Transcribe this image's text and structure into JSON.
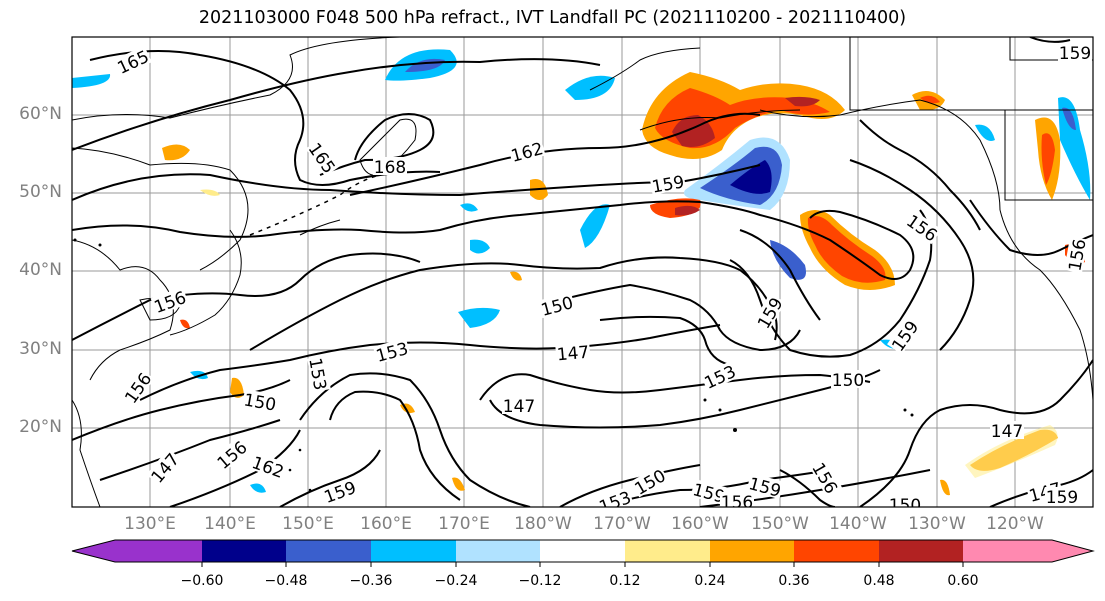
{
  "title": "2021103000 F048 500 hPa refract., IVT Landfall PC (2021110200 - 2021110400)",
  "map": {
    "lat_labels": [
      "60°N",
      "50°N",
      "40°N",
      "30°N",
      "20°N"
    ],
    "lon_labels": [
      "130°E",
      "140°E",
      "150°E",
      "160°E",
      "170°E",
      "180°W",
      "170°W",
      "160°W",
      "150°W",
      "140°W",
      "130°W",
      "120°W"
    ],
    "contour_labels": [
      "165",
      "165",
      "168",
      "162",
      "159",
      "156",
      "159",
      "150",
      "156",
      "153",
      "147",
      "153",
      "159",
      "150",
      "147",
      "156",
      "150",
      "153",
      "147",
      "147",
      "162",
      "156",
      "159",
      "153",
      "150",
      "159",
      "156",
      "159",
      "156",
      "150",
      "147",
      "159",
      "159",
      "156"
    ]
  },
  "colorbar": {
    "tick_labels": [
      "−0.60",
      "−0.48",
      "−0.36",
      "−0.24",
      "−0.12",
      "0.12",
      "0.24",
      "0.36",
      "0.48",
      "0.60"
    ],
    "colors": [
      "#9932cc",
      "#00008b",
      "#3a5fcd",
      "#00bfff",
      "#b0e2ff",
      "#ffffff",
      "#ffec8b",
      "#ffa500",
      "#ff4500",
      "#b22222",
      "#ff89b0"
    ]
  }
}
